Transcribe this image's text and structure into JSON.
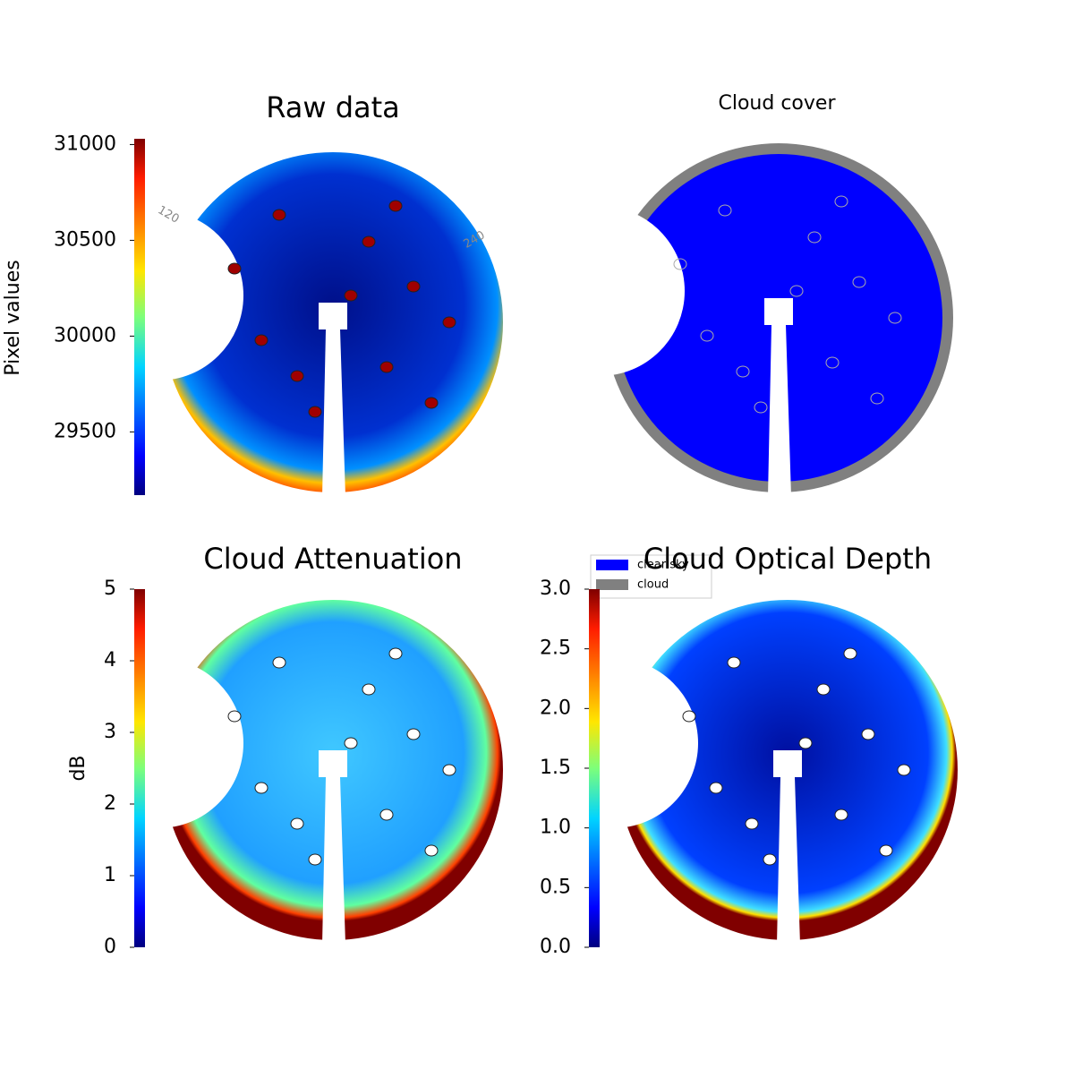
{
  "chart_data": [
    {
      "type": "image",
      "title": "Raw data",
      "colormap": "jet",
      "colorbar_label": "Pixel values",
      "clim": [
        29170,
        31030
      ],
      "cticks": [
        29500,
        30000,
        30500,
        31000
      ],
      "annotations": [
        "120",
        "240"
      ]
    },
    {
      "type": "mask",
      "title": "Cloud cover",
      "series": [
        {
          "name": "clear sky",
          "color": "#0000ff"
        },
        {
          "name": "cloud",
          "color": "#808080"
        }
      ]
    },
    {
      "type": "image",
      "title": "Cloud Attenuation",
      "colormap": "jet",
      "colorbar_label": "dB",
      "clim": [
        0,
        5
      ],
      "cticks": [
        0,
        1,
        2,
        3,
        4,
        5
      ]
    },
    {
      "type": "image",
      "title": "Cloud Optical Depth",
      "colormap": "jet",
      "clim": [
        0,
        3
      ],
      "cticks": [
        {
          "value": 0,
          "label": "0.0"
        },
        0.5,
        {
          "value": 1,
          "label": "1.0"
        },
        1.5,
        {
          "value": 2,
          "label": "2.0"
        },
        2.5,
        {
          "value": 3,
          "label": "3.0"
        }
      ]
    }
  ]
}
